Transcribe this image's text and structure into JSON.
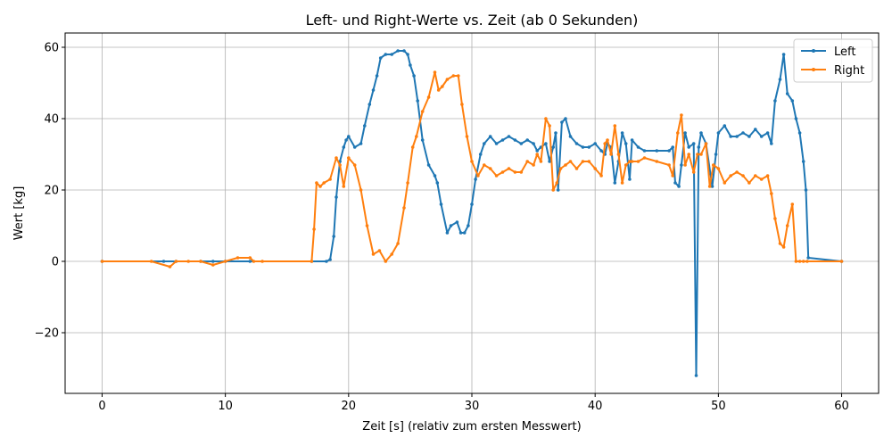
{
  "chart_data": {
    "type": "line",
    "title": "Left- und Right-Werte vs. Zeit (ab 0 Sekunden)",
    "xlabel": "Zeit [s] (relativ zum ersten Messwert)",
    "ylabel": "Wert [kg]",
    "xlim": [
      -3,
      63
    ],
    "ylim": [
      -37,
      64
    ],
    "xticks": [
      0,
      10,
      20,
      30,
      40,
      50,
      60
    ],
    "yticks": [
      -20,
      0,
      20,
      40,
      60
    ],
    "xtick_labels": [
      "0",
      "10",
      "20",
      "30",
      "40",
      "50",
      "60"
    ],
    "ytick_labels": [
      "−20",
      "0",
      "20",
      "40",
      "60"
    ],
    "grid": true,
    "legend": "top-right",
    "colors": {
      "Left": "#1f77b4",
      "Right": "#ff7f0e"
    },
    "series": [
      {
        "name": "Left",
        "x": [
          0,
          5,
          6,
          8,
          9,
          10,
          12,
          17,
          18.2,
          18.5,
          18.8,
          19,
          19.3,
          19.6,
          19.8,
          20,
          20.5,
          21,
          21.3,
          21.7,
          22,
          22.3,
          22.6,
          23,
          23.5,
          24,
          24.5,
          24.8,
          25,
          25.3,
          25.6,
          26,
          26.5,
          27,
          27.2,
          27.5,
          28,
          28.3,
          28.8,
          29.1,
          29.4,
          29.7,
          30,
          30.3,
          30.7,
          31,
          31.5,
          32,
          32.5,
          33,
          33.5,
          34,
          34.5,
          35,
          35.3,
          35.6,
          36,
          36.3,
          36.6,
          36.8,
          37,
          37.3,
          37.6,
          38,
          38.5,
          39,
          39.5,
          40,
          40.5,
          40.8,
          41,
          41.3,
          41.6,
          41.9,
          42.2,
          42.5,
          42.8,
          43,
          43.5,
          44,
          45,
          46,
          46.3,
          46.5,
          46.8,
          47,
          47.3,
          47.6,
          48,
          48.2,
          48.4,
          48.6,
          49,
          49.5,
          49.8,
          50,
          50.5,
          51,
          51.5,
          52,
          52.5,
          53,
          53.5,
          54,
          54.3,
          54.6,
          55,
          55.3,
          55.6,
          56,
          56.3,
          56.6,
          56.9,
          57.1,
          57.3,
          60
        ],
        "y": [
          0,
          0,
          0,
          0,
          0,
          0,
          0,
          0,
          0,
          0.5,
          7,
          18,
          28,
          32,
          34,
          35,
          32,
          33,
          38,
          44,
          48,
          52,
          57,
          58,
          58,
          59,
          59,
          58,
          55,
          52,
          45,
          34,
          27,
          24,
          22,
          16,
          8,
          10,
          11,
          8,
          8,
          10,
          16,
          23,
          30,
          33,
          35,
          33,
          34,
          35,
          34,
          33,
          34,
          33,
          31,
          32,
          33,
          28,
          32,
          36,
          20,
          39,
          40,
          35,
          33,
          32,
          32,
          33,
          31,
          30,
          33,
          32,
          22,
          28,
          36,
          33,
          23,
          34,
          32,
          31,
          31,
          31,
          32,
          22,
          21,
          27,
          36,
          32,
          33,
          -32,
          32,
          36,
          33,
          21,
          30,
          36,
          38,
          35,
          35,
          36,
          35,
          37,
          35,
          36,
          33,
          45,
          51,
          58,
          47,
          45,
          40,
          36,
          28,
          20,
          1,
          0
        ]
      },
      {
        "name": "Right",
        "x": [
          0,
          4,
          5.5,
          6,
          7,
          8,
          9,
          10,
          11,
          12,
          12.3,
          13,
          17,
          17.2,
          17.4,
          17.7,
          18,
          18.5,
          19,
          19.3,
          19.6,
          20,
          20.5,
          21,
          21.5,
          22,
          22.5,
          23,
          23.5,
          24,
          24.5,
          24.8,
          25.2,
          25.5,
          26,
          26.5,
          27,
          27.3,
          27.6,
          28,
          28.5,
          28.9,
          29.2,
          29.6,
          30,
          30.5,
          31,
          31.5,
          32,
          32.5,
          33,
          33.5,
          34,
          34.5,
          35,
          35.3,
          35.6,
          36,
          36.3,
          36.6,
          36.9,
          37.2,
          37.6,
          38,
          38.5,
          39,
          39.5,
          40,
          40.5,
          40.8,
          41,
          41.3,
          41.6,
          41.9,
          42.2,
          42.5,
          42.8,
          43,
          43.5,
          44,
          45,
          46,
          46.3,
          46.7,
          47,
          47.3,
          47.6,
          48,
          48.3,
          48.6,
          49,
          49.3,
          49.6,
          50,
          50.5,
          51,
          51.5,
          52,
          52.5,
          53,
          53.5,
          54,
          54.3,
          54.6,
          55,
          55.3,
          55.6,
          56,
          56.3,
          56.6,
          56.9,
          57.2,
          60
        ],
        "y": [
          0,
          0,
          -1.5,
          0,
          0,
          0,
          -1,
          0,
          1,
          1,
          0,
          0,
          0,
          9,
          22,
          21,
          22,
          23,
          29,
          27,
          21,
          29,
          27,
          20,
          10,
          2,
          3,
          0,
          2,
          5,
          15,
          22,
          32,
          35,
          42,
          46,
          53,
          48,
          49,
          51,
          52,
          52,
          44,
          35,
          28,
          24,
          27,
          26,
          24,
          25,
          26,
          25,
          25,
          28,
          27,
          30,
          28,
          40,
          38,
          20,
          22,
          26,
          27,
          28,
          26,
          28,
          28,
          26,
          24,
          33,
          34,
          30,
          38,
          30,
          22,
          27,
          28,
          28,
          28,
          29,
          28,
          27,
          24,
          36,
          41,
          27,
          30,
          25,
          30,
          30,
          33,
          21,
          27,
          26,
          22,
          24,
          25,
          24,
          22,
          24,
          23,
          24,
          19,
          12,
          5,
          4,
          10,
          16,
          0,
          0,
          0,
          0,
          0
        ]
      }
    ]
  }
}
